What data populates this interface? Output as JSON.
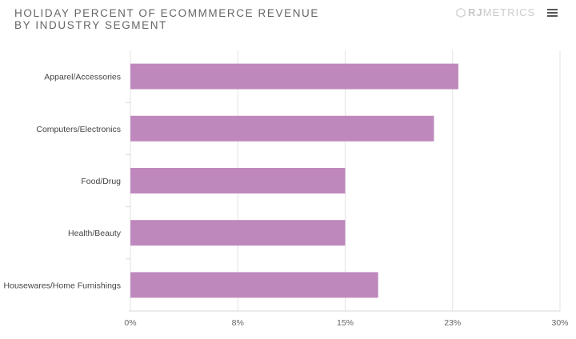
{
  "header": {
    "title_line1": "HOLIDAY PERCENT OF ECOMMMERCE REVENUE",
    "title_line2": "BY INDUSTRY SEGMENT",
    "logo_bold": "RJ",
    "logo_rest": "METRICS",
    "menu_icon": "hamburger-icon"
  },
  "chart_data": {
    "type": "bar",
    "orientation": "horizontal",
    "title": "HOLIDAY PERCENT OF ECOMMMERCE REVENUE BY INDUSTRY SEGMENT",
    "categories": [
      "Apparel/Accessories",
      "Computers/Electronics",
      "Food/Drug",
      "Health/Beauty",
      "Housewares/Home Furnishings"
    ],
    "values": [
      22.9,
      21.2,
      15.0,
      15.0,
      17.3
    ],
    "xlim": [
      0,
      30
    ],
    "ticks": [
      0,
      7.5,
      15,
      22.5,
      30
    ],
    "tick_labels": [
      "0%",
      "8%",
      "15%",
      "23%",
      "30%"
    ],
    "bar_color": "#bf88bd",
    "grid": true
  }
}
